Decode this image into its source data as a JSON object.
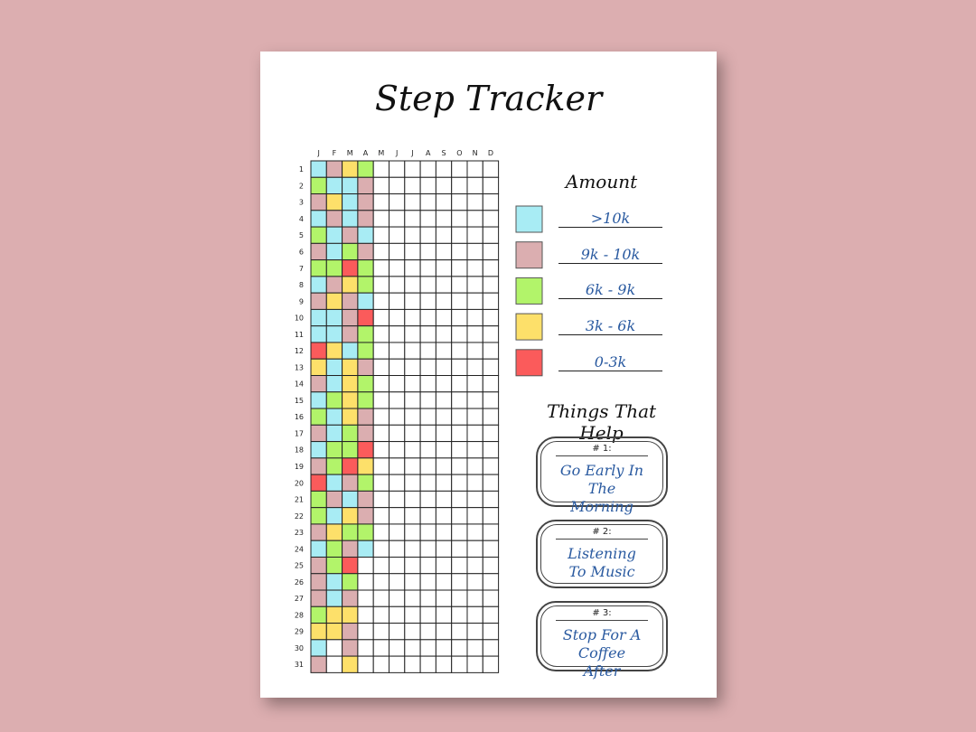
{
  "title": "Step Tracker",
  "tracker": {
    "months": [
      "J",
      "F",
      "M",
      "A",
      "M",
      "J",
      "J",
      "A",
      "S",
      "O",
      "N",
      "D"
    ],
    "days": [
      "1",
      "2",
      "3",
      "4",
      "5",
      "6",
      "7",
      "8",
      "9",
      "10",
      "11",
      "12",
      "13",
      "14",
      "15",
      "16",
      "17",
      "18",
      "19",
      "20",
      "21",
      "22",
      "23",
      "24",
      "25",
      "26",
      "27",
      "28",
      "29",
      "30",
      "31"
    ],
    "cells": [
      [
        0,
        1,
        3,
        2
      ],
      [
        2,
        0,
        0,
        1
      ],
      [
        1,
        3,
        0,
        1
      ],
      [
        0,
        1,
        0,
        1
      ],
      [
        2,
        0,
        1,
        0
      ],
      [
        1,
        0,
        2,
        1
      ],
      [
        2,
        2,
        4,
        2
      ],
      [
        0,
        1,
        3,
        2
      ],
      [
        1,
        3,
        1,
        0
      ],
      [
        0,
        0,
        1,
        4
      ],
      [
        0,
        0,
        1,
        2
      ],
      [
        4,
        3,
        0,
        2
      ],
      [
        3,
        0,
        3,
        1
      ],
      [
        1,
        0,
        3,
        2
      ],
      [
        0,
        2,
        3,
        2
      ],
      [
        2,
        0,
        3,
        1
      ],
      [
        1,
        0,
        2,
        1
      ],
      [
        0,
        2,
        2,
        4
      ],
      [
        1,
        2,
        4,
        3
      ],
      [
        4,
        0,
        1,
        2
      ],
      [
        2,
        1,
        0,
        1
      ],
      [
        2,
        0,
        3,
        1
      ],
      [
        1,
        3,
        2,
        2
      ],
      [
        0,
        2,
        1,
        0
      ],
      [
        1,
        2,
        4,
        null
      ],
      [
        1,
        0,
        2,
        null
      ],
      [
        1,
        0,
        1,
        null
      ],
      [
        2,
        3,
        3,
        null
      ],
      [
        3,
        3,
        1,
        null
      ],
      [
        0,
        null,
        1,
        null
      ],
      [
        1,
        null,
        3,
        null
      ]
    ]
  },
  "legend": {
    "title": "Amount",
    "items": [
      {
        "label": ">10k",
        "color": "#a8ecf4"
      },
      {
        "label": "9k - 10k",
        "color": "#dbaeb0"
      },
      {
        "label": "6k - 9k",
        "color": "#b2f46a"
      },
      {
        "label": "3k - 6k",
        "color": "#fde06a"
      },
      {
        "label": "0-3k",
        "color": "#fb5b5b"
      }
    ]
  },
  "helps": {
    "title": "Things That Help",
    "items": [
      {
        "number": "# 1:",
        "text": "Go Early In The Morning"
      },
      {
        "number": "# 2:",
        "text": "Listening To Music"
      },
      {
        "number": "# 3:",
        "text": "Stop For A Coffee After"
      }
    ]
  }
}
